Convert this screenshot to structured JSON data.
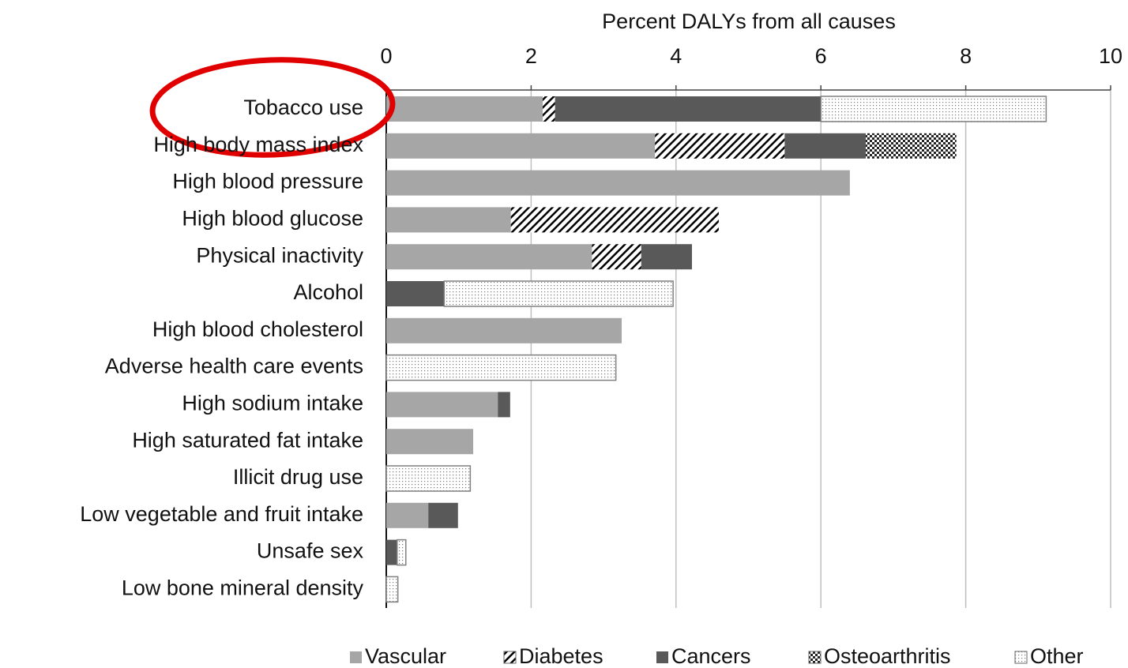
{
  "chart_data": {
    "type": "stacked-bar-horizontal",
    "title": "Percent DALYs from all causes",
    "categories": [
      "Tobacco use",
      "High body mass index",
      "High blood pressure",
      "High blood glucose",
      "Physical inactivity",
      "Alcohol",
      "High blood cholesterol",
      "Adverse health care events",
      "High sodium intake",
      "High saturated fat intake",
      "Illicit drug use",
      "Low vegetable and fruit intake",
      "Unsafe sex",
      "Low bone mineral density"
    ],
    "series": [
      {
        "name": "Vascular",
        "color": "#a6a6a6",
        "pattern": "solid",
        "values": [
          2.16,
          3.71,
          6.4,
          1.72,
          2.84,
          null,
          3.25,
          null,
          1.54,
          1.2,
          null,
          0.58,
          null,
          null
        ]
      },
      {
        "name": "Diabetes",
        "color": "#000000",
        "pattern": "hatch",
        "values": [
          0.17,
          1.79,
          null,
          2.87,
          0.68,
          null,
          null,
          null,
          null,
          null,
          null,
          null,
          null,
          null
        ]
      },
      {
        "name": "Cancers",
        "color": "#595959",
        "pattern": "solid",
        "values": [
          3.67,
          1.12,
          null,
          null,
          0.7,
          0.8,
          null,
          null,
          0.17,
          null,
          null,
          0.41,
          0.15,
          null
        ]
      },
      {
        "name": "Osteoarthritis",
        "color": "#000000",
        "pattern": "check",
        "values": [
          null,
          1.25,
          null,
          null,
          null,
          null,
          null,
          null,
          null,
          null,
          null,
          null,
          null,
          null
        ]
      },
      {
        "name": "Other",
        "color": "#808080",
        "pattern": "dots",
        "values": [
          3.11,
          null,
          null,
          null,
          null,
          3.16,
          null,
          3.17,
          null,
          null,
          1.16,
          null,
          0.12,
          0.16
        ]
      }
    ],
    "xlim": [
      0,
      10
    ],
    "xticks": [
      0,
      2,
      4,
      6,
      8,
      10
    ],
    "grid": true,
    "legend": "bottom"
  }
}
